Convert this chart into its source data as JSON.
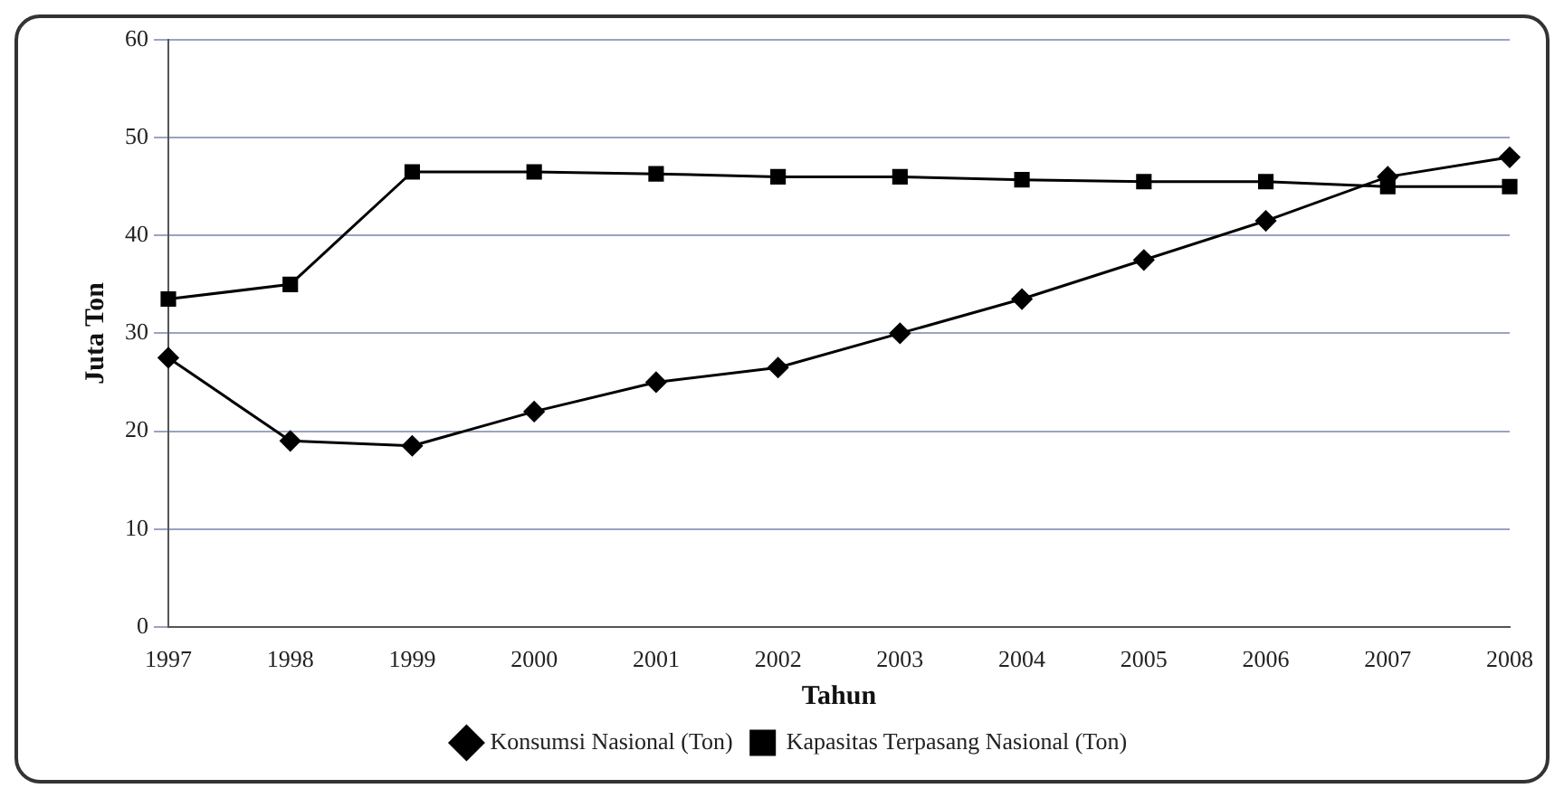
{
  "chart_data": {
    "type": "line",
    "xlabel": "Tahun",
    "ylabel": "Juta Ton",
    "categories": [
      "1997",
      "1998",
      "1999",
      "2000",
      "2001",
      "2002",
      "2003",
      "2004",
      "2005",
      "2006",
      "2007",
      "2008"
    ],
    "series": [
      {
        "name": "Konsumsi Nasional (Ton)",
        "color": "#000000",
        "marker": "diamond",
        "values": [
          27.5,
          19,
          18.5,
          22,
          25,
          26.5,
          30,
          33.5,
          37.5,
          41.5,
          46,
          48
        ]
      },
      {
        "name": "Kapasitas Terpasang Nasional (Ton)",
        "color": "#000000",
        "marker": "square",
        "values": [
          33.5,
          35,
          46.5,
          46.5,
          46.3,
          46,
          46,
          45.7,
          45.5,
          45.5,
          45,
          45
        ]
      }
    ],
    "ylim": [
      0,
      60
    ],
    "yticks": [
      0,
      10,
      20,
      30,
      40,
      50,
      60
    ],
    "grid": "y",
    "legend": "bottom",
    "line_style": "solid"
  }
}
